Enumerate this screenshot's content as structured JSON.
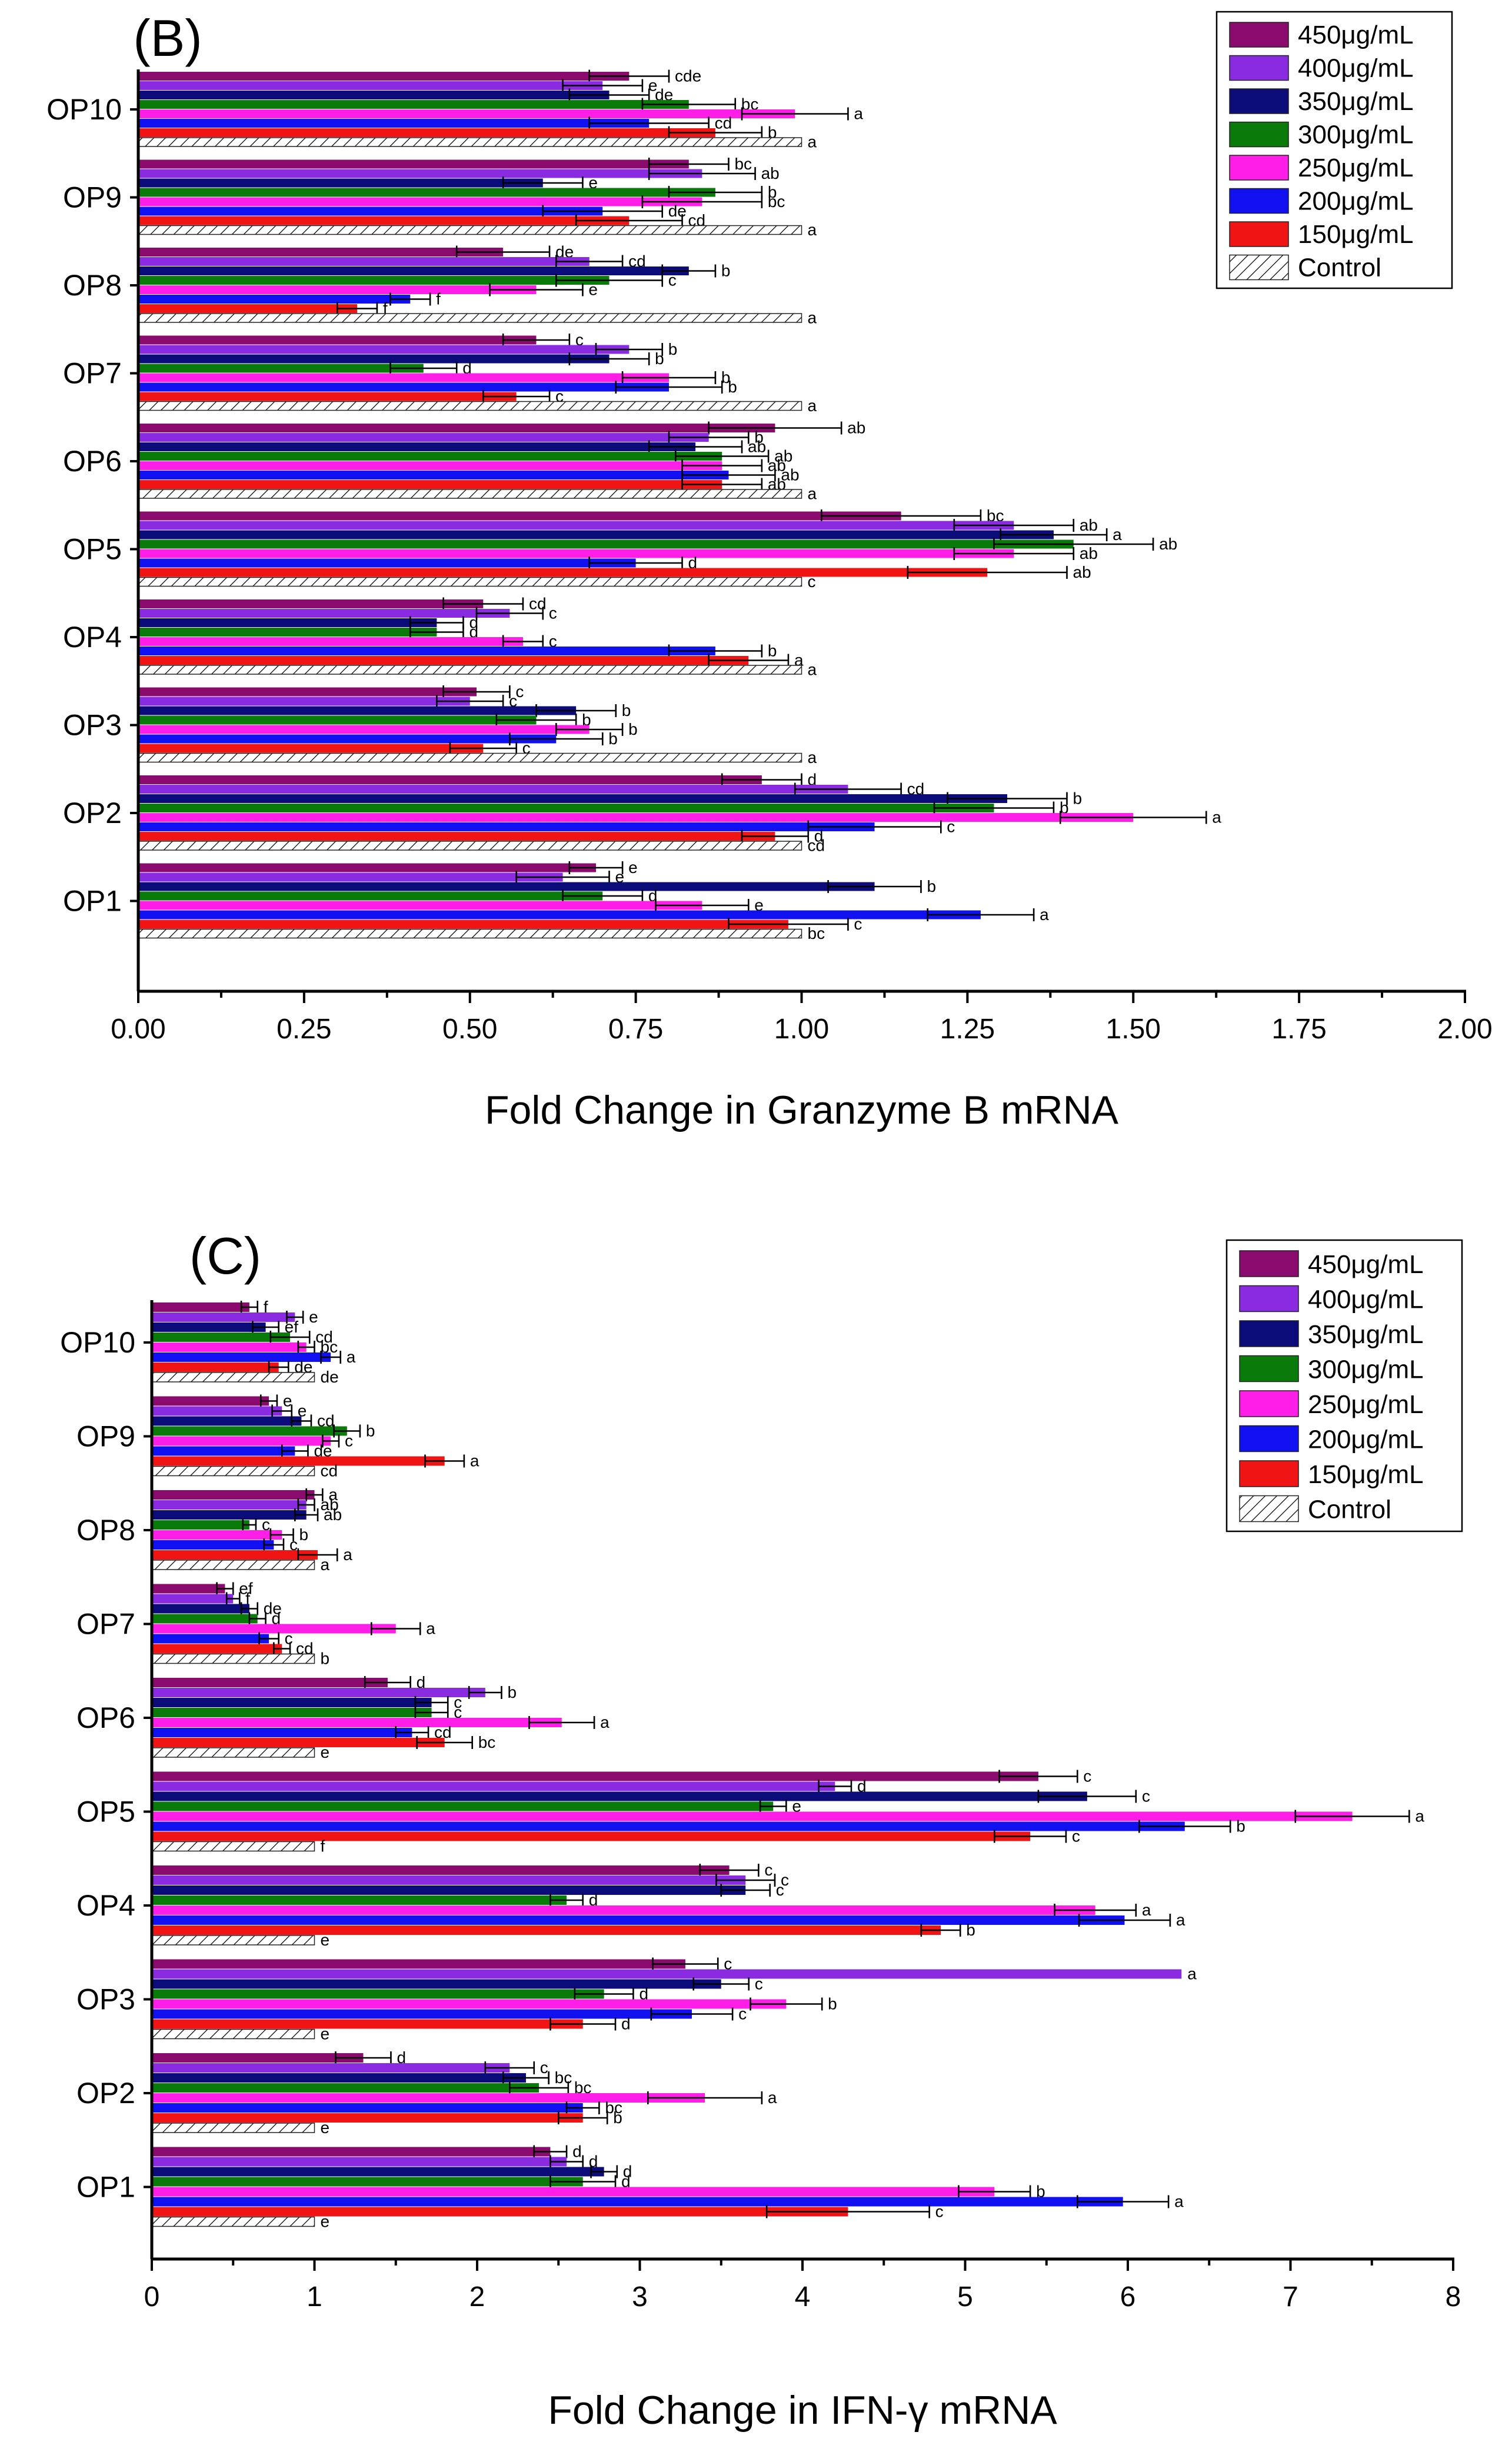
{
  "chart_data": [
    {
      "type": "bar",
      "orientation": "horizontal",
      "panel_label": "(B)",
      "xlabel": "Fold Change in Granzyme B mRNA",
      "xlim": [
        0,
        2
      ],
      "xticks": [
        "0.00",
        "0.25",
        "0.50",
        "0.75",
        "1.00",
        "1.25",
        "1.50",
        "1.75",
        "2.00"
      ],
      "categories": [
        "OP10",
        "OP9",
        "OP8",
        "OP7",
        "OP6",
        "OP5",
        "OP4",
        "OP3",
        "OP2",
        "OP1"
      ],
      "legend_position": "top-right",
      "series": [
        {
          "name": "450μg/mL",
          "color": "#8B0A6E",
          "values": [
            0.74,
            0.83,
            0.55,
            0.6,
            0.96,
            1.15,
            0.52,
            0.51,
            0.94,
            0.69
          ],
          "errors": [
            0.06,
            0.06,
            0.07,
            0.05,
            0.1,
            0.12,
            0.06,
            0.05,
            0.06,
            0.04
          ],
          "letters": [
            "cde",
            "bc",
            "de",
            "c",
            "ab",
            "bc",
            "cd",
            "c",
            "d",
            "e"
          ]
        },
        {
          "name": "400μg/mL",
          "color": "#8A2BE2",
          "values": [
            0.7,
            0.85,
            0.68,
            0.74,
            0.86,
            1.32,
            0.56,
            0.5,
            1.07,
            0.64
          ],
          "errors": [
            0.06,
            0.08,
            0.05,
            0.05,
            0.06,
            0.09,
            0.05,
            0.05,
            0.08,
            0.07
          ],
          "letters": [
            "e",
            "ab",
            "cd",
            "b",
            "b",
            "ab",
            "c",
            "c",
            "cd",
            "e"
          ]
        },
        {
          "name": "350μg/mL",
          "color": "#0B0B7A",
          "values": [
            0.71,
            0.61,
            0.83,
            0.71,
            0.84,
            1.38,
            0.45,
            0.66,
            1.31,
            1.11
          ],
          "errors": [
            0.06,
            0.06,
            0.04,
            0.06,
            0.07,
            0.08,
            0.04,
            0.06,
            0.09,
            0.07
          ],
          "letters": [
            "de",
            "e",
            "b",
            "b",
            "ab",
            "a",
            "d",
            "b",
            "b",
            "b"
          ]
        },
        {
          "name": "300μg/mL",
          "color": "#0A7A0A",
          "values": [
            0.83,
            0.87,
            0.71,
            0.43,
            0.88,
            1.41,
            0.45,
            0.6,
            1.29,
            0.7
          ],
          "errors": [
            0.07,
            0.07,
            0.08,
            0.05,
            0.07,
            0.12,
            0.04,
            0.06,
            0.09,
            0.06
          ],
          "letters": [
            "bc",
            "b",
            "c",
            "d",
            "ab",
            "ab",
            "d",
            "b",
            "b",
            "d"
          ]
        },
        {
          "name": "250μg/mL",
          "color": "#FF1DE8",
          "values": [
            0.99,
            0.85,
            0.6,
            0.8,
            0.88,
            1.32,
            0.58,
            0.68,
            1.5,
            0.85
          ],
          "errors": [
            0.08,
            0.09,
            0.07,
            0.07,
            0.06,
            0.09,
            0.03,
            0.05,
            0.11,
            0.07
          ],
          "letters": [
            "a",
            "bc",
            "e",
            "b",
            "ab",
            "ab",
            "c",
            "b",
            "a",
            "e"
          ]
        },
        {
          "name": "200μg/mL",
          "color": "#1010F0",
          "values": [
            0.77,
            0.7,
            0.41,
            0.8,
            0.89,
            0.75,
            0.87,
            0.63,
            1.11,
            1.27
          ],
          "errors": [
            0.09,
            0.09,
            0.03,
            0.08,
            0.07,
            0.07,
            0.07,
            0.07,
            0.1,
            0.08
          ],
          "letters": [
            "cd",
            "de",
            "f",
            "b",
            "ab",
            "d",
            "b",
            "b",
            "c",
            "a"
          ]
        },
        {
          "name": "150μg/mL",
          "color": "#F01414",
          "values": [
            0.87,
            0.74,
            0.33,
            0.57,
            0.88,
            1.28,
            0.92,
            0.52,
            0.96,
            0.98
          ],
          "errors": [
            0.07,
            0.08,
            0.03,
            0.05,
            0.06,
            0.12,
            0.06,
            0.05,
            0.05,
            0.09
          ],
          "letters": [
            "b",
            "cd",
            "f",
            "c",
            "ab",
            "ab",
            "a",
            "c",
            "d",
            "c"
          ]
        },
        {
          "name": "Control",
          "color": "#ffffff",
          "hatched": true,
          "values": [
            1.0,
            1.0,
            1.0,
            1.0,
            1.0,
            1.0,
            1.0,
            1.0,
            1.0,
            1.0
          ],
          "errors": [
            0,
            0,
            0,
            0,
            0,
            0,
            0,
            0,
            0,
            0
          ],
          "letters": [
            "a",
            "a",
            "a",
            "a",
            "a",
            "c",
            "a",
            "a",
            "cd",
            "bc"
          ]
        }
      ]
    },
    {
      "type": "bar",
      "orientation": "horizontal",
      "panel_label": "(C)",
      "xlabel": "Fold Change in IFN-γ mRNA",
      "xlim": [
        0,
        8
      ],
      "xticks": [
        "0",
        "1",
        "2",
        "3",
        "4",
        "5",
        "6",
        "7",
        "8"
      ],
      "categories": [
        "OP10",
        "OP9",
        "OP8",
        "OP7",
        "OP6",
        "OP5",
        "OP4",
        "OP3",
        "OP2",
        "OP1"
      ],
      "legend_position": "top-right",
      "series": [
        {
          "name": "450μg/mL",
          "color": "#8B0A6E",
          "values": [
            0.6,
            0.72,
            1.0,
            0.45,
            1.45,
            5.45,
            3.55,
            3.28,
            1.3,
            2.45
          ],
          "errors": [
            0.05,
            0.05,
            0.05,
            0.05,
            0.14,
            0.24,
            0.18,
            0.2,
            0.17,
            0.1
          ],
          "letters": [
            "f",
            "e",
            "a",
            "ef",
            "d",
            "c",
            "c",
            "c",
            "d",
            "d"
          ]
        },
        {
          "name": "400μg/mL",
          "color": "#8A2BE2",
          "values": [
            0.88,
            0.8,
            0.95,
            0.5,
            2.05,
            4.2,
            3.65,
            6.33,
            2.2,
            2.55
          ],
          "errors": [
            0.05,
            0.06,
            0.05,
            0.04,
            0.1,
            0.1,
            0.18,
            0.0,
            0.15,
            0.1
          ],
          "letters": [
            "e",
            "e",
            "ab",
            "f",
            "b",
            "d",
            "c",
            "a",
            "c",
            "d"
          ]
        },
        {
          "name": "350μg/mL",
          "color": "#0B0B7A",
          "values": [
            0.7,
            0.92,
            0.95,
            0.6,
            1.72,
            5.75,
            3.65,
            3.5,
            2.3,
            2.78
          ],
          "errors": [
            0.08,
            0.06,
            0.07,
            0.05,
            0.1,
            0.3,
            0.15,
            0.17,
            0.14,
            0.08
          ],
          "letters": [
            "ef",
            "cd",
            "ab",
            "de",
            "c",
            "c",
            "c",
            "c",
            "bc",
            "d"
          ]
        },
        {
          "name": "300μg/mL",
          "color": "#0A7A0A",
          "values": [
            0.85,
            1.2,
            0.6,
            0.65,
            1.72,
            3.82,
            2.55,
            2.78,
            2.38,
            2.65
          ],
          "errors": [
            0.12,
            0.08,
            0.04,
            0.05,
            0.1,
            0.08,
            0.1,
            0.18,
            0.18,
            0.2
          ],
          "letters": [
            "cd",
            "b",
            "c",
            "d",
            "c",
            "e",
            "d",
            "d",
            "bc",
            "d"
          ]
        },
        {
          "name": "250μg/mL",
          "color": "#FF1DE8",
          "values": [
            0.95,
            1.1,
            0.8,
            1.5,
            2.52,
            7.38,
            5.8,
            3.9,
            3.4,
            5.18
          ],
          "errors": [
            0.05,
            0.05,
            0.07,
            0.15,
            0.2,
            0.35,
            0.25,
            0.22,
            0.35,
            0.22
          ],
          "letters": [
            "bc",
            "c",
            "b",
            "a",
            "a",
            "a",
            "a",
            "b",
            "a",
            "b"
          ]
        },
        {
          "name": "200μg/mL",
          "color": "#1010F0",
          "values": [
            1.1,
            0.88,
            0.75,
            0.72,
            1.6,
            6.35,
            5.98,
            3.32,
            2.65,
            5.97
          ],
          "errors": [
            0.06,
            0.08,
            0.06,
            0.06,
            0.1,
            0.28,
            0.28,
            0.25,
            0.1,
            0.28
          ],
          "letters": [
            "a",
            "de",
            "c",
            "c",
            "cd",
            "b",
            "a",
            "c",
            "bc",
            "a"
          ]
        },
        {
          "name": "150μg/mL",
          "color": "#F01414",
          "values": [
            0.78,
            1.8,
            1.02,
            0.8,
            1.8,
            5.4,
            4.85,
            2.65,
            2.65,
            4.28
          ],
          "errors": [
            0.06,
            0.12,
            0.12,
            0.05,
            0.17,
            0.22,
            0.12,
            0.2,
            0.15,
            0.5
          ],
          "letters": [
            "de",
            "a",
            "a",
            "cd",
            "bc",
            "c",
            "b",
            "d",
            "b",
            "c"
          ]
        },
        {
          "name": "Control",
          "color": "#ffffff",
          "hatched": true,
          "values": [
            1.0,
            1.0,
            1.0,
            1.0,
            1.0,
            1.0,
            1.0,
            1.0,
            1.0,
            1.0
          ],
          "errors": [
            0,
            0,
            0,
            0,
            0,
            0,
            0,
            0,
            0,
            0
          ],
          "letters": [
            "de",
            "cd",
            "a",
            "b",
            "e",
            "f",
            "e",
            "e",
            "e",
            "e"
          ]
        }
      ]
    }
  ]
}
